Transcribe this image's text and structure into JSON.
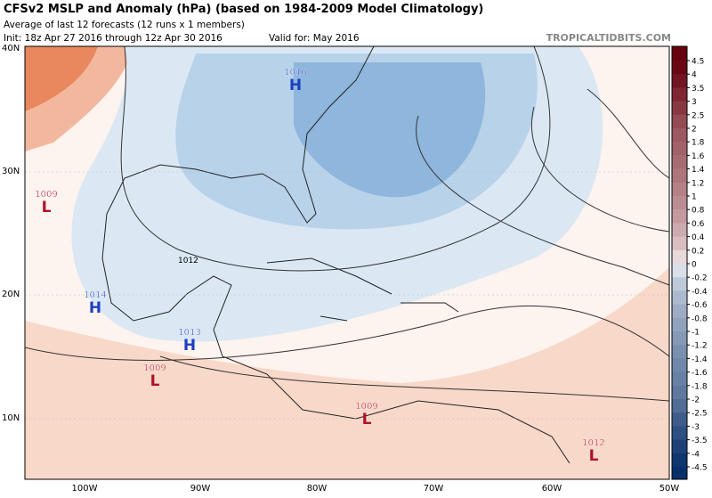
{
  "header": {
    "title": "CFSv2 MSLP and Anomaly (hPa) (based on 1984-2009 Model Climatology)",
    "subtitle": "Average of last 12 forecasts (12 runs x 1 members)",
    "init": "Init: 18z Apr 27 2016 through 12z Apr 30 2016",
    "valid": "Valid for: May 2016",
    "site": "TROPICALTIDBITS.COM"
  },
  "map": {
    "lat_labels": [
      "40N",
      "30N",
      "20N",
      "10N"
    ],
    "lon_labels": [
      "100W",
      "90W",
      "80W",
      "70W",
      "60W",
      "50W"
    ],
    "contour_label": "1012",
    "centers": [
      {
        "letter": "H",
        "pressure": "1016",
        "color": "#1c3fc0"
      },
      {
        "letter": "L",
        "pressure": "1009",
        "color": "#b0102a"
      },
      {
        "letter": "H",
        "pressure": "1014",
        "color": "#1c3fc0"
      },
      {
        "letter": "H",
        "pressure": "1013",
        "color": "#1c3fc0"
      },
      {
        "letter": "L",
        "pressure": "1009",
        "color": "#b0102a"
      },
      {
        "letter": "L",
        "pressure": "1009",
        "color": "#b0102a"
      },
      {
        "letter": "L",
        "pressure": "1012",
        "color": "#b0102a"
      }
    ]
  },
  "colorbar": {
    "ticks": [
      4.5,
      4,
      3.5,
      3,
      2.5,
      2,
      1.8,
      1.6,
      1.4,
      1.2,
      1,
      0.8,
      0.6,
      0.4,
      0.2,
      0,
      -0.2,
      -0.4,
      -0.6,
      -0.8,
      -1,
      -1.2,
      -1.4,
      -1.6,
      -1.8,
      -2,
      -2.5,
      -3,
      -3.5,
      -4,
      -4.5
    ],
    "colors": {
      "negative": "#08306b",
      "zero": "#ffffff",
      "positive": "#67000d"
    }
  }
}
